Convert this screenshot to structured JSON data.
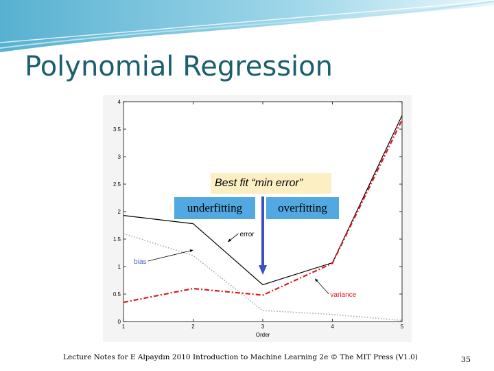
{
  "slide": {
    "title": "Polynomial Regression",
    "footer": "Lecture Notes for E Alpaydın 2010 Introduction to Machine Learning 2e © The MIT Press (V1.0)",
    "page_number": "35"
  },
  "callouts": {
    "best_fit": "Best fit “min error”",
    "underfitting": "underfitting",
    "overfitting": "overfitting"
  },
  "colors": {
    "title": "#1b5e6e",
    "callout_fill": "#52a8e0",
    "best_fit_fill": "#fcefc4",
    "arrow": "#3b4fc8",
    "error_line": "#000000",
    "variance_line": "#e0161b",
    "bias_line": "#9aa6bd"
  },
  "chart_data": {
    "type": "line",
    "xlabel": "Order",
    "ylabel": "",
    "xlim": [
      1,
      5
    ],
    "ylim": [
      0,
      4
    ],
    "x": [
      1,
      2,
      3,
      4,
      5
    ],
    "x_ticks": [
      "1",
      "2",
      "3",
      "4",
      "5"
    ],
    "y_ticks": [
      "0",
      "0.5",
      "1",
      "1.5",
      "2",
      "2.5",
      "3",
      "3.5",
      "4"
    ],
    "series": [
      {
        "name": "error",
        "values": [
          1.93,
          1.78,
          0.67,
          1.07,
          3.75
        ],
        "color": "#000000",
        "style": "solid"
      },
      {
        "name": "bias",
        "values": [
          1.6,
          1.2,
          0.2,
          0.13,
          0.02
        ],
        "color": "#9aa6bd",
        "style": "dotted"
      },
      {
        "name": "variance",
        "values": [
          0.35,
          0.6,
          0.48,
          1.06,
          3.67
        ],
        "color": "#e0161b",
        "style": "dashdot"
      }
    ],
    "annotations": [
      {
        "text": "error",
        "points_to": [
          2.5,
          1.45
        ],
        "label_at": [
          2.65,
          1.6
        ],
        "color": "#000000"
      },
      {
        "text": "bias",
        "points_to": [
          2.0,
          1.3
        ],
        "label_at": [
          1.35,
          1.1
        ],
        "color": "#4a62c8"
      },
      {
        "text": "variance",
        "points_to": [
          3.75,
          0.78
        ],
        "label_at": [
          3.95,
          0.5
        ],
        "color": "#e0161b"
      }
    ],
    "highlight_x": 3
  }
}
